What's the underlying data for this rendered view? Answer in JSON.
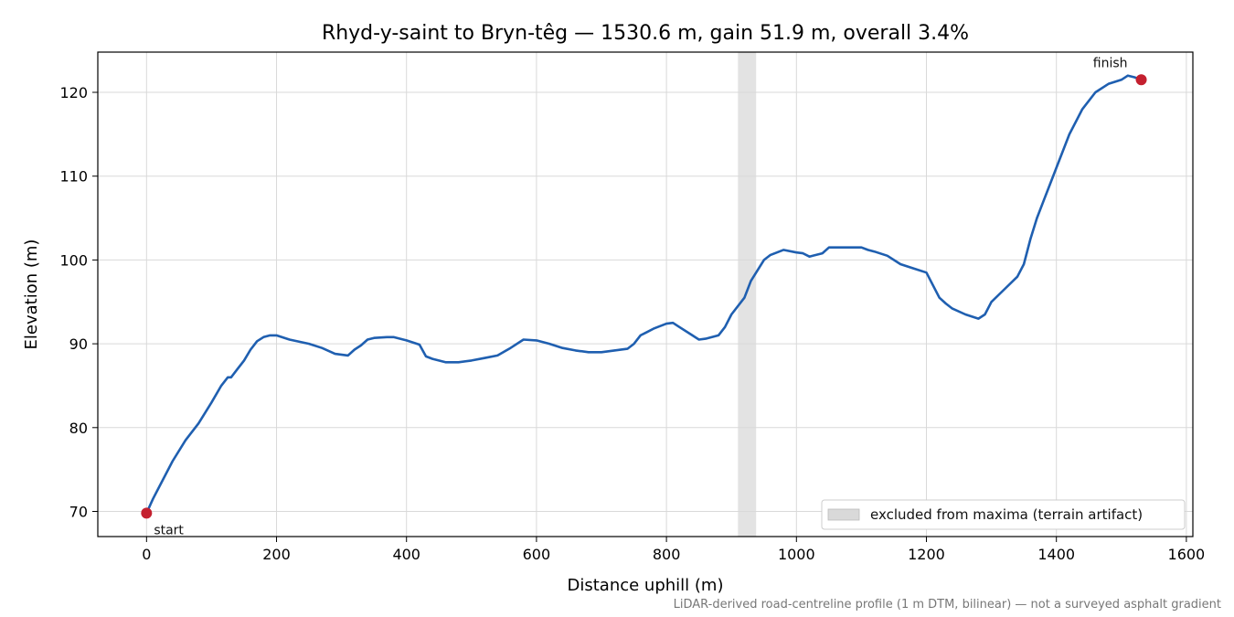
{
  "chart_data": {
    "type": "line",
    "title": "Rhyd-y-saint to Bryn-têg — 1530.6 m, gain 51.9 m, overall 3.4%",
    "xlabel": "Distance uphill (m)",
    "ylabel": "Elevation (m)",
    "xlim": [
      -75,
      1610
    ],
    "ylim": [
      67,
      124.8
    ],
    "x_ticks": [
      0,
      200,
      400,
      600,
      800,
      1000,
      1200,
      1400,
      1600
    ],
    "y_ticks": [
      70,
      80,
      90,
      100,
      110,
      120
    ],
    "grid": true,
    "legend_position": "lower-right",
    "line_color": "#1f5fb0",
    "marker_color": "#c4202f",
    "band_color": "#d9d9d9",
    "series": [
      {
        "name": "",
        "x": [
          0,
          10,
          20,
          40,
          60,
          80,
          100,
          115,
          125,
          130,
          140,
          150,
          160,
          170,
          180,
          190,
          200,
          220,
          250,
          270,
          290,
          310,
          320,
          330,
          340,
          350,
          370,
          380,
          400,
          420,
          430,
          440,
          460,
          480,
          500,
          520,
          540,
          560,
          580,
          600,
          620,
          640,
          660,
          680,
          700,
          720,
          740,
          750,
          760,
          770,
          780,
          800,
          810,
          820,
          840,
          850,
          860,
          880,
          890,
          900,
          920,
          930,
          950,
          960,
          980,
          1000,
          1010,
          1020,
          1040,
          1050,
          1070,
          1100,
          1110,
          1120,
          1140,
          1160,
          1180,
          1200,
          1220,
          1230,
          1240,
          1260,
          1280,
          1290,
          1300,
          1320,
          1340,
          1350,
          1360,
          1370,
          1380,
          1390,
          1400,
          1420,
          1440,
          1460,
          1480,
          1500,
          1510,
          1520,
          1530.6
        ],
        "y": [
          69.8,
          71.5,
          73.0,
          76.0,
          78.5,
          80.5,
          83.0,
          85.0,
          86.0,
          86.0,
          87.0,
          88.0,
          89.3,
          90.3,
          90.8,
          91.0,
          91.0,
          90.5,
          90.0,
          89.5,
          88.8,
          88.6,
          89.3,
          89.8,
          90.5,
          90.7,
          90.8,
          90.8,
          90.4,
          89.9,
          88.5,
          88.2,
          87.8,
          87.8,
          88.0,
          88.3,
          88.6,
          89.5,
          90.5,
          90.4,
          90.0,
          89.5,
          89.2,
          89.0,
          89.0,
          89.2,
          89.4,
          90.0,
          91.0,
          91.4,
          91.8,
          92.4,
          92.5,
          92.0,
          91.0,
          90.5,
          90.6,
          91.0,
          92.0,
          93.5,
          95.5,
          97.5,
          100.0,
          100.6,
          101.2,
          100.9,
          100.8,
          100.4,
          100.8,
          101.5,
          101.5,
          101.5,
          101.2,
          101.0,
          100.5,
          99.5,
          99.0,
          98.5,
          95.5,
          94.8,
          94.2,
          93.5,
          93.0,
          93.5,
          95.0,
          96.5,
          98.0,
          99.5,
          102.5,
          105.0,
          107.0,
          109.0,
          111.0,
          115.0,
          118.0,
          120.0,
          121.0,
          121.5,
          122.0,
          121.8,
          121.5
        ]
      }
    ],
    "start_point": {
      "x": 0,
      "y": 69.8,
      "label": "start"
    },
    "finish_point": {
      "x": 1530.6,
      "y": 121.5,
      "label": "finish"
    },
    "excluded_band": {
      "x_start": 910,
      "x_end": 938,
      "legend_label": "excluded from maxima (terrain artifact)"
    },
    "footnote": "LiDAR-derived road-centreline profile (1 m DTM, bilinear) — not a surveyed asphalt gradient"
  }
}
